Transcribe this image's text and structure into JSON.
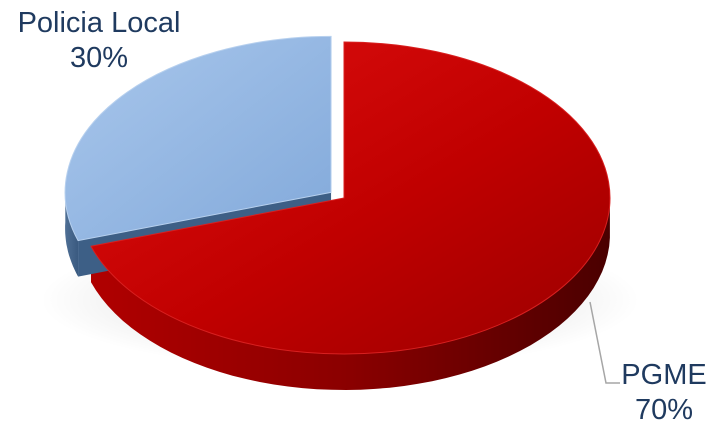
{
  "chart_data": {
    "type": "pie",
    "style": "3d",
    "title": "",
    "slices": [
      {
        "label": "PGME",
        "value": 70,
        "percent_label": "70%",
        "color": "#c00000"
      },
      {
        "label": "Policia Local",
        "value": 30,
        "percent_label": "30%",
        "color": "#8eb4e3"
      }
    ],
    "exploded_slice": "Policia Local",
    "legend": "none"
  }
}
